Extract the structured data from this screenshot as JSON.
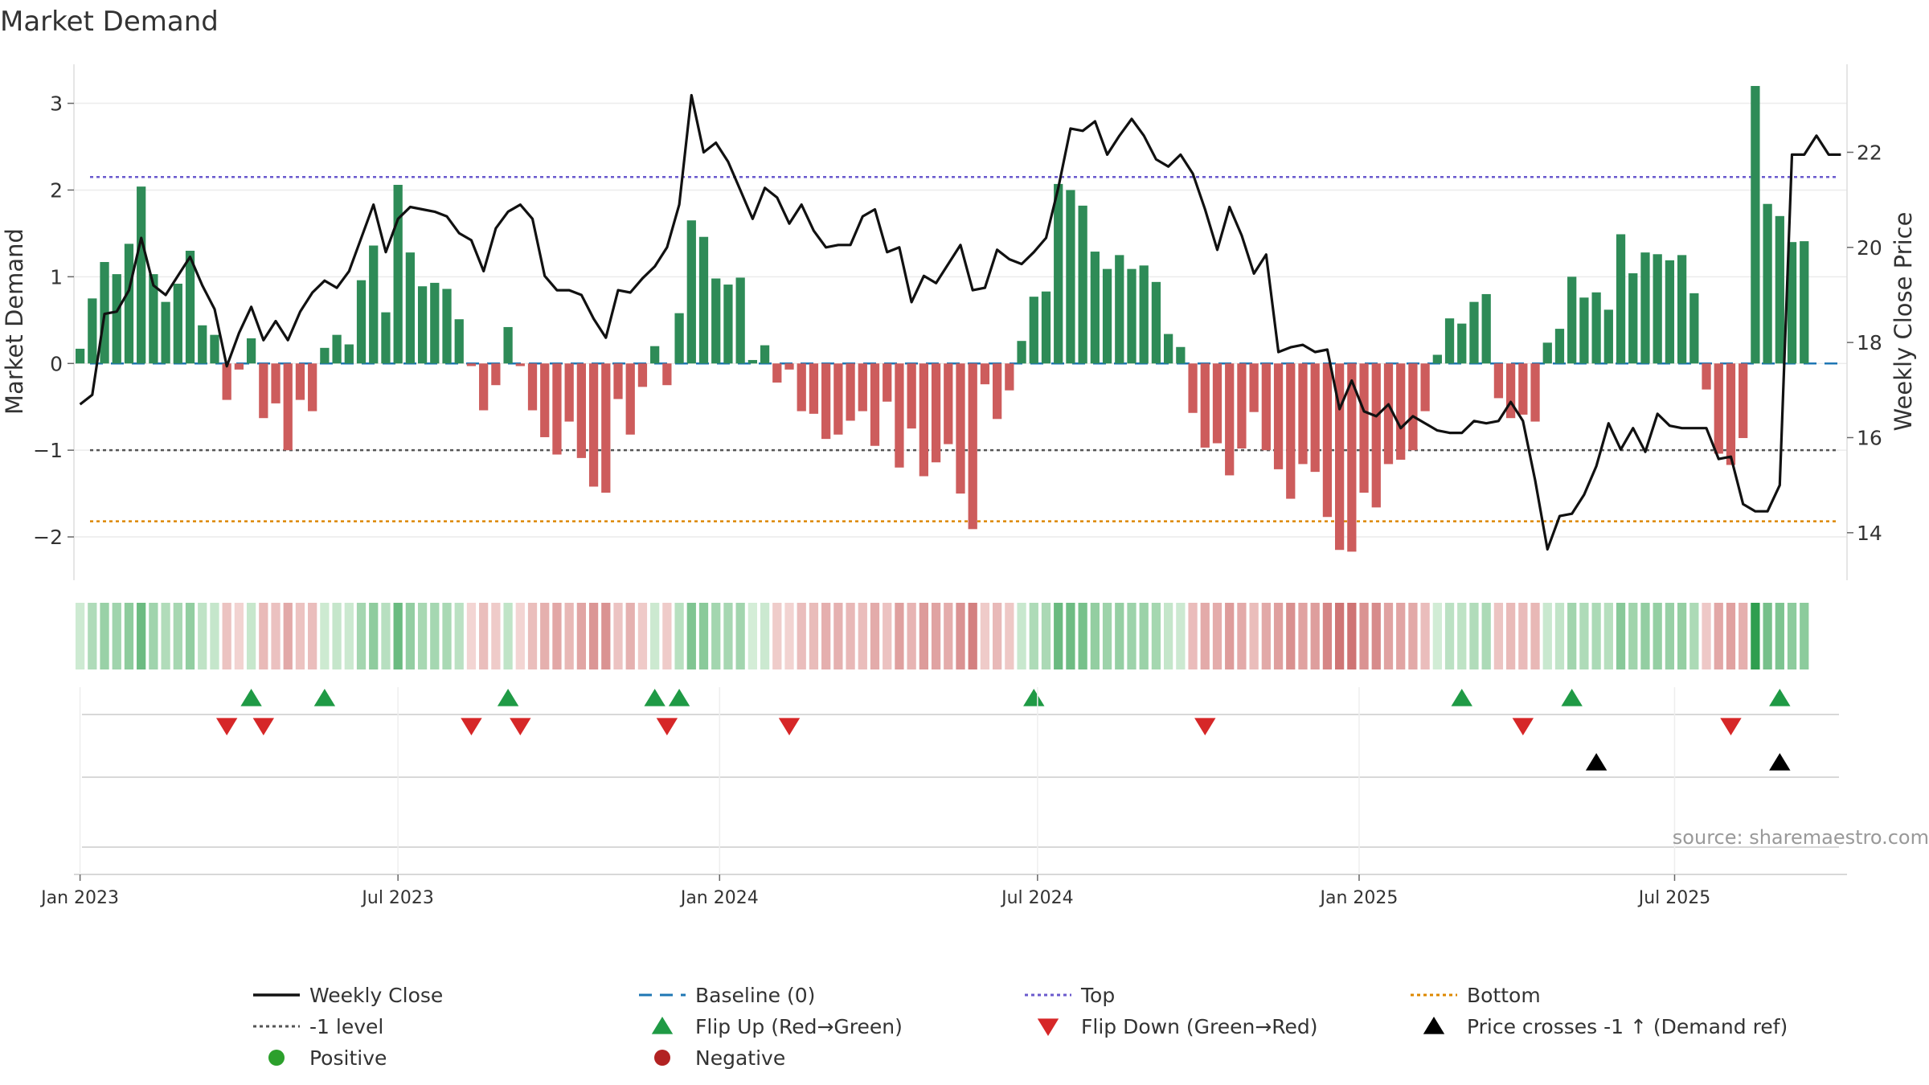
{
  "chart_data": {
    "type": "bar",
    "title": "Market Demand",
    "ylabel_left": "Market Demand",
    "ylabel_right": "Weekly Close Price",
    "source": "source: sharemaestro.com",
    "ylim_left": [
      -2.5,
      3.45
    ],
    "ylim_right": [
      13.0,
      23.85
    ],
    "yticks_left": [
      {
        "v": 3,
        "label": "3"
      },
      {
        "v": 2,
        "label": "2"
      },
      {
        "v": 1,
        "label": "1"
      },
      {
        "v": 0,
        "label": "0"
      },
      {
        "v": -1,
        "label": "−1"
      },
      {
        "v": -2,
        "label": "−2"
      }
    ],
    "yticks_right": [
      {
        "v": 22,
        "label": "22"
      },
      {
        "v": 20,
        "label": "20"
      },
      {
        "v": 18,
        "label": "18"
      },
      {
        "v": 16,
        "label": "16"
      },
      {
        "v": 14,
        "label": "14"
      }
    ],
    "reference_lines": {
      "top": 2.15,
      "minus_one": -1.0,
      "bottom": -1.82,
      "baseline": 0
    },
    "x_ticks": [
      {
        "week": 1,
        "label": "Jan 2023"
      },
      {
        "week": 27,
        "label": "Jul 2023"
      },
      {
        "week": 53.3,
        "label": "Jan 2024"
      },
      {
        "week": 79.3,
        "label": "Jul 2024"
      },
      {
        "week": 105.6,
        "label": "Jan 2025"
      },
      {
        "week": 131.4,
        "label": "Jul 2025"
      }
    ],
    "weeks": 145,
    "demand": [
      0.17,
      0.75,
      1.17,
      1.03,
      1.38,
      2.04,
      1.03,
      0.71,
      0.92,
      1.3,
      0.44,
      0.33,
      -0.42,
      -0.07,
      0.29,
      -0.63,
      -0.46,
      -1.0,
      -0.42,
      -0.55,
      0.18,
      0.33,
      0.22,
      0.96,
      1.36,
      0.59,
      2.06,
      1.28,
      0.89,
      0.93,
      0.86,
      0.51,
      -0.03,
      -0.54,
      -0.25,
      0.42,
      -0.03,
      -0.54,
      -0.85,
      -1.05,
      -0.67,
      -1.09,
      -1.42,
      -1.49,
      -0.41,
      -0.82,
      -0.27,
      0.2,
      -0.25,
      0.58,
      1.65,
      1.46,
      0.98,
      0.91,
      0.99,
      0.04,
      0.21,
      -0.22,
      -0.07,
      -0.55,
      -0.58,
      -0.87,
      -0.82,
      -0.66,
      -0.55,
      -0.95,
      -0.44,
      -1.2,
      -0.75,
      -1.3,
      -1.14,
      -0.93,
      -1.5,
      -1.91,
      -0.24,
      -0.64,
      -0.31,
      0.26,
      0.77,
      0.83,
      2.07,
      2.0,
      1.82,
      1.29,
      1.09,
      1.25,
      1.09,
      1.13,
      0.94,
      0.34,
      0.19,
      -0.57,
      -0.97,
      -0.92,
      -1.29,
      -0.98,
      -0.56,
      -1.0,
      -1.22,
      -1.56,
      -1.16,
      -1.25,
      -1.77,
      -2.15,
      -2.17,
      -1.49,
      -1.66,
      -1.16,
      -1.11,
      -1.0,
      -0.55,
      0.1,
      0.52,
      0.46,
      0.71,
      0.8,
      -0.4,
      -0.63,
      -0.59,
      -0.67,
      0.24,
      0.4,
      1.0,
      0.76,
      0.82,
      0.62,
      1.49,
      1.04,
      1.28,
      1.26,
      1.19,
      1.25,
      0.81,
      -0.3,
      -1.04,
      -1.17,
      -0.86,
      3.2,
      1.84,
      1.7,
      1.4,
      1.41
    ],
    "close": [
      16.7,
      16.9,
      18.6,
      18.65,
      19.1,
      20.2,
      19.2,
      19.0,
      19.4,
      19.8,
      19.2,
      18.7,
      17.5,
      18.2,
      18.75,
      18.05,
      18.45,
      18.05,
      18.65,
      19.05,
      19.3,
      19.15,
      19.5,
      20.2,
      20.9,
      19.9,
      20.6,
      20.85,
      20.8,
      20.75,
      20.65,
      20.3,
      20.15,
      19.5,
      20.4,
      20.75,
      20.9,
      20.6,
      19.4,
      19.1,
      19.1,
      19.0,
      18.5,
      18.1,
      19.1,
      19.05,
      19.35,
      19.6,
      20.0,
      20.9,
      23.2,
      22.0,
      22.2,
      21.8,
      21.2,
      20.6,
      21.25,
      21.05,
      20.5,
      20.9,
      20.35,
      20.0,
      20.05,
      20.05,
      20.65,
      20.8,
      19.9,
      20.0,
      18.85,
      19.4,
      19.25,
      19.65,
      20.05,
      19.1,
      19.15,
      19.95,
      19.75,
      19.65,
      19.9,
      20.2,
      21.25,
      22.5,
      22.45,
      22.65,
      21.95,
      22.35,
      22.7,
      22.35,
      21.85,
      21.7,
      21.95,
      21.55,
      20.8,
      19.95,
      20.85,
      20.25,
      19.45,
      19.85,
      17.8,
      17.9,
      17.95,
      17.8,
      17.85,
      16.6,
      17.2,
      16.55,
      16.45,
      16.7,
      16.2,
      16.45,
      16.3,
      16.15,
      16.1,
      16.1,
      16.35,
      16.3,
      16.35,
      16.75,
      16.35,
      15.1,
      13.65,
      14.35,
      14.4,
      14.8,
      15.4,
      16.3,
      15.75,
      16.2,
      15.7,
      16.5,
      16.25,
      16.2,
      16.2,
      16.2,
      15.55,
      15.6,
      14.6,
      14.45,
      14.45,
      15.0,
      21.95,
      21.95,
      22.35,
      21.95,
      21.95
    ],
    "flip_up_weeks": [
      14,
      20,
      35,
      47,
      49,
      78,
      113,
      122,
      139
    ],
    "flip_down_weeks": [
      12,
      15,
      32,
      36,
      48,
      58,
      92,
      118,
      135
    ],
    "price_cross_weeks": [
      124,
      139
    ],
    "colors": {
      "positive_bar": "#2e8b57",
      "negative_bar": "#cd5c5c",
      "close_line": "#111111",
      "baseline": "#1f77b4",
      "top": "#6a5acd",
      "minus_one": "#555555",
      "bottom": "#dd8800",
      "flip_up": "#1f9a45",
      "flip_down": "#d62728",
      "price_cross": "#000000",
      "positive_dot": "#2ca02c",
      "negative_dot": "#b22222"
    },
    "legend": [
      {
        "kind": "line",
        "color": "#111111",
        "label": "Weekly Close"
      },
      {
        "kind": "dash",
        "color": "#1f77b4",
        "label": "Baseline (0)"
      },
      {
        "kind": "dot-line",
        "color": "#6a5acd",
        "label": "Top"
      },
      {
        "kind": "dot-line",
        "color": "#dd8800",
        "label": "Bottom"
      },
      {
        "kind": "dot-line",
        "color": "#555555",
        "label": "-1 level"
      },
      {
        "kind": "tri-up",
        "color": "#1f9a45",
        "label": "Flip Up (Red→Green)"
      },
      {
        "kind": "tri-down",
        "color": "#d62728",
        "label": "Flip Down (Green→Red)"
      },
      {
        "kind": "tri-up",
        "color": "#000000",
        "label": "Price crosses -1 ↑ (Demand ref)"
      },
      {
        "kind": "circle",
        "color": "#2ca02c",
        "label": "Positive"
      },
      {
        "kind": "circle",
        "color": "#b22222",
        "label": "Negative"
      }
    ]
  }
}
